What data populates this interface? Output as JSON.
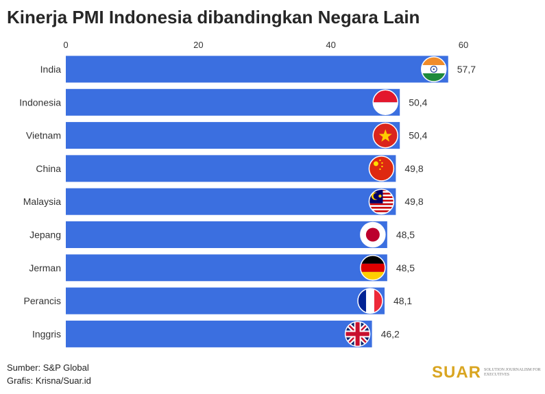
{
  "title": "Kinerja PMI Indonesia dibandingkan Negara Lain",
  "source_line": "Sumber: S&P Global",
  "credit_line": "Grafis: Krisna/Suar.id",
  "logo": {
    "word": "SUAR",
    "tagline": "Solution Journalism for Executives"
  },
  "colors": {
    "bar": "#3b6fe0",
    "text": "#333333"
  },
  "chart_data": {
    "type": "bar",
    "orientation": "horizontal",
    "categories": [
      "India",
      "Indonesia",
      "Vietnam",
      "China",
      "Malaysia",
      "Jepang",
      "Jerman",
      "Perancis",
      "Inggris"
    ],
    "values": [
      57.7,
      50.4,
      50.4,
      49.8,
      49.8,
      48.5,
      48.5,
      48.1,
      46.2
    ],
    "value_labels": [
      "57,7",
      "50,4",
      "50,4",
      "49,8",
      "49,8",
      "48,5",
      "48,5",
      "48,1",
      "46,2"
    ],
    "flag_icons": [
      "india-flag-icon",
      "indonesia-flag-icon",
      "vietnam-flag-icon",
      "china-flag-icon",
      "malaysia-flag-icon",
      "japan-flag-icon",
      "germany-flag-icon",
      "france-flag-icon",
      "uk-flag-icon"
    ],
    "xticks": [
      0,
      20,
      40,
      60
    ],
    "xlim": [
      0,
      60
    ],
    "axis_position": "top",
    "grid": false
  }
}
